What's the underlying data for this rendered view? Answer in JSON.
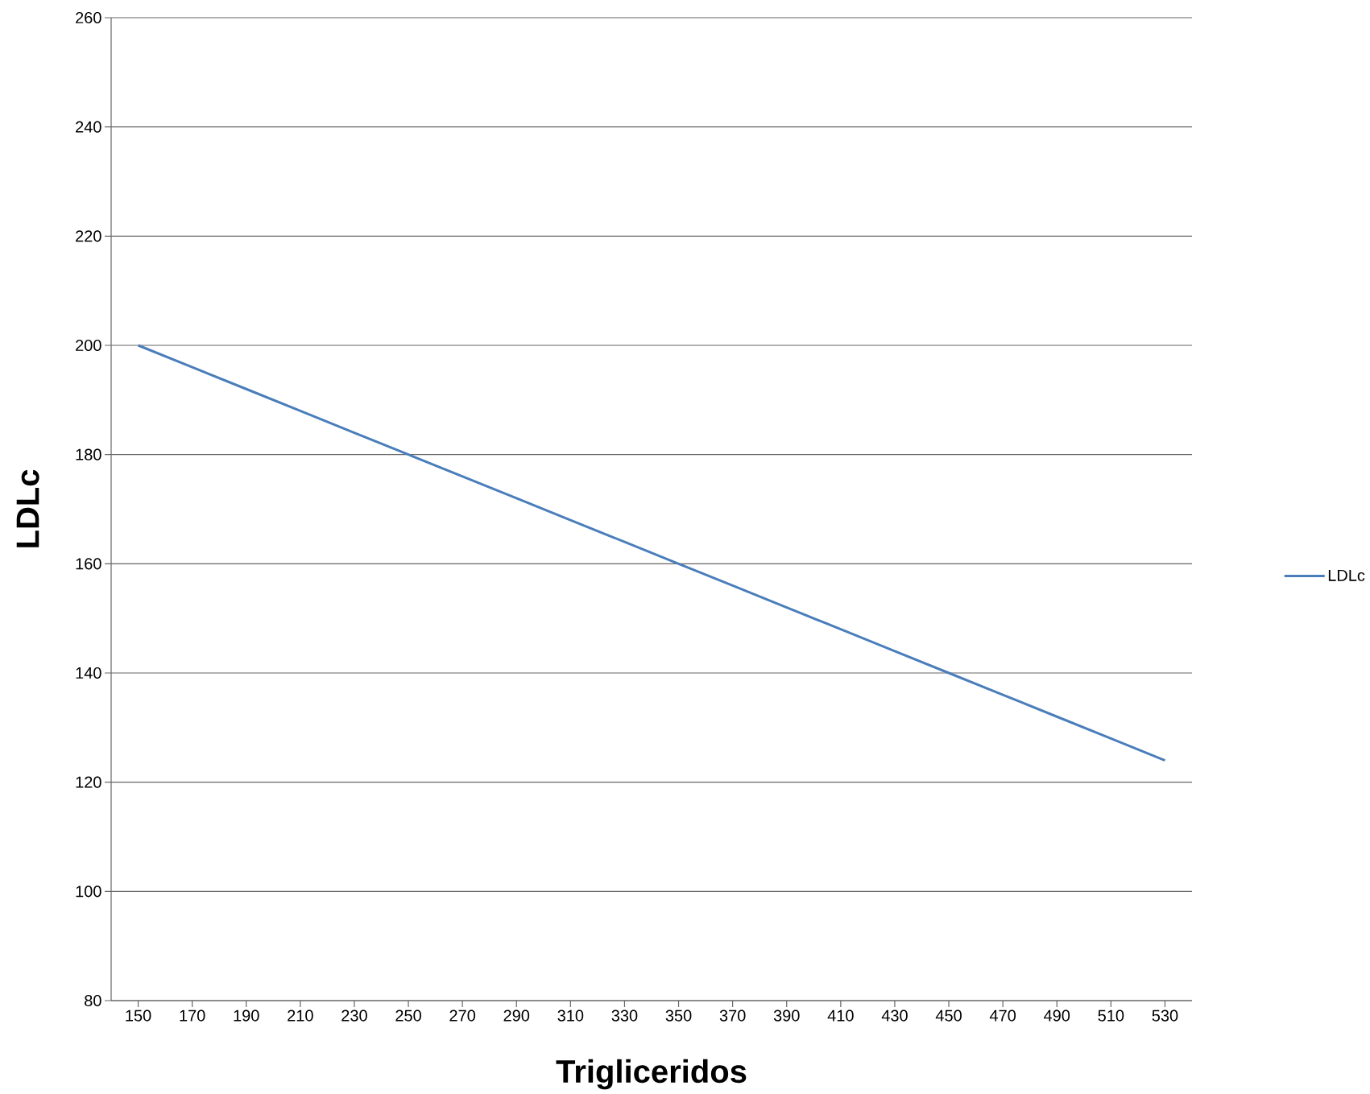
{
  "chart_data": {
    "type": "line",
    "xlabel": "Trigliceridos",
    "ylabel": "LDLc",
    "categories": [
      "150",
      "170",
      "190",
      "210",
      "230",
      "250",
      "270",
      "290",
      "310",
      "330",
      "350",
      "370",
      "390",
      "410",
      "430",
      "450",
      "470",
      "490",
      "510",
      "530"
    ],
    "series": [
      {
        "name": "LDLc",
        "color": "#4a7ebb",
        "values": [
          200,
          196,
          192,
          188,
          184,
          180,
          176,
          172,
          168,
          164,
          160,
          156,
          152,
          148,
          144,
          140,
          136,
          132,
          128,
          124
        ]
      }
    ],
    "ylim": [
      80,
      260
    ],
    "yticks": [
      80,
      100,
      120,
      140,
      160,
      180,
      200,
      220,
      240,
      260
    ],
    "grid": "y",
    "legend": "right",
    "marker": "none",
    "line_style": "solid"
  }
}
